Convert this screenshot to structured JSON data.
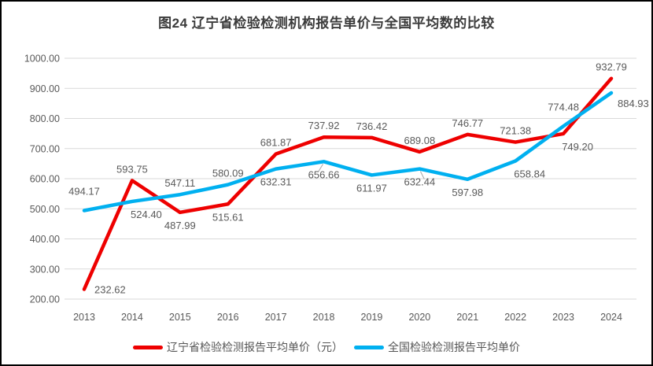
{
  "chart_data": {
    "type": "line",
    "title": "图24 辽宁省检验检测机构报告单价与全国平均数的比较",
    "categories": [
      "2013",
      "2014",
      "2015",
      "2016",
      "2017",
      "2018",
      "2019",
      "2020",
      "2021",
      "2022",
      "2023",
      "2024"
    ],
    "series": [
      {
        "name": "辽宁省检验检测报告平均单价（元）",
        "color": "#EE0000",
        "values": [
          232.62,
          593.75,
          487.99,
          515.61,
          681.87,
          737.92,
          736.42,
          689.08,
          746.77,
          721.38,
          749.2,
          932.79
        ],
        "label_placements": [
          "right",
          "above",
          "below",
          "below",
          "above",
          "above",
          "above",
          "above",
          "above",
          "above",
          "below-right",
          "above"
        ]
      },
      {
        "name": "全国检验检测报告平均单价",
        "color": "#00B0F0",
        "values": [
          494.17,
          524.4,
          547.11,
          580.09,
          632.31,
          656.66,
          611.97,
          632.44,
          597.98,
          658.84,
          774.48,
          884.93
        ],
        "label_placements": [
          "above-far",
          "below-right",
          "above",
          "above",
          "below",
          "below",
          "below",
          "below",
          "below",
          "below-right",
          "above-far",
          "right-below"
        ],
        "label_leaders": [
          [
            5,
            -7
          ],
          [
            7,
            6
          ]
        ]
      }
    ],
    "ylim": [
      200,
      1000
    ],
    "ytick_step": 100,
    "ytick_decimals": 2,
    "grid": "horizontal",
    "legend_position": "bottom",
    "styles": {
      "gridline_color": "#D9D9D9",
      "tick_label_color": "#595959",
      "data_label_color": "#595959",
      "title_color": "#3B3B3B",
      "leader_color": "#A6A6A6",
      "frame_border_color": "#000000"
    }
  }
}
